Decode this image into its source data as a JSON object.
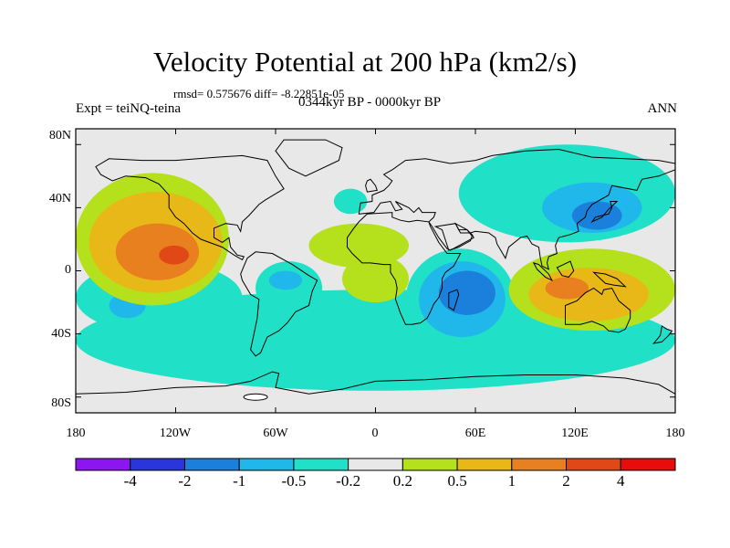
{
  "chart_data": {
    "type": "contour_map",
    "title": "Velocity Potential at 200 hPa (km2/s)",
    "stats": "rmsd= 0.575676 diff= -8.22851e-05",
    "experiment": "Expt = teiNQ-teina",
    "period": "0344kyr BP - 0000kyr BP",
    "season": "ANN",
    "x_ticks": [
      "180",
      "120W",
      "60W",
      "0",
      "60E",
      "120E",
      "180"
    ],
    "y_ticks": [
      "80N",
      "40N",
      "0",
      "40S",
      "80S"
    ],
    "xlim": [
      -180,
      180
    ],
    "ylim": [
      -90,
      90
    ],
    "levels": [
      "-4",
      "-2",
      "-1",
      "-0.5",
      "-0.2",
      "0.2",
      "0.5",
      "1",
      "2",
      "4"
    ],
    "colors": [
      "#8c16f0",
      "#2a35dc",
      "#1a80dc",
      "#20b8ea",
      "#20e0c8",
      "#e8e8e8",
      "#b4e01c",
      "#e8b818",
      "#e88020",
      "#e04818",
      "#e80c0c"
    ],
    "features": [
      {
        "name": "Eastern Pacific maximum",
        "lon": -120,
        "lat": 10,
        "peak": 2
      },
      {
        "name": "Indian Ocean minimum",
        "lon": 55,
        "lat": -12,
        "peak": -1
      },
      {
        "name": "East Asia minimum",
        "lon": 130,
        "lat": 35,
        "peak": -1
      },
      {
        "name": "Maritime Continent maximum",
        "lon": 110,
        "lat": -10,
        "peak": 1
      },
      {
        "name": "South America minimum",
        "lon": -55,
        "lat": -5,
        "peak": -1
      },
      {
        "name": "South Pacific minimum",
        "lon": -150,
        "lat": -20,
        "peak": -1
      },
      {
        "name": "Southern Ocean",
        "lon": 0,
        "lat": -55,
        "peak": -0.5
      }
    ]
  }
}
